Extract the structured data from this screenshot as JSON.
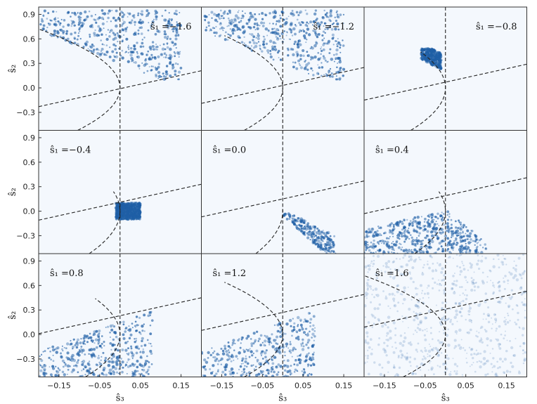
{
  "chart_data": {
    "type": "heatmap",
    "layout": {
      "rows": 3,
      "cols": 3
    },
    "xlabel": "ŝ₃",
    "ylabel": "ŝ₂",
    "xlim": [
      -0.2,
      0.2
    ],
    "ylim": [
      -0.52,
      0.99
    ],
    "xticks": [
      -0.15,
      -0.05,
      0.05,
      0.15
    ],
    "xtick_labels": [
      "−0.15",
      "−0.05",
      "0.05",
      "0.15"
    ],
    "yticks": [
      -0.3,
      0.0,
      0.3,
      0.6,
      0.9
    ],
    "ytick_labels": [
      "−0.3",
      "0.0",
      "0.3",
      "0.6",
      "0.9"
    ],
    "colormap": [
      "#ffffff",
      "#08306b"
    ],
    "vertical_reference_x": 0.0,
    "panels": [
      {
        "label_prefix": "ŝ₁ =",
        "label_value": "−1.6",
        "label_position": "top-right",
        "s1": -1.6
      },
      {
        "label_prefix": "ŝ₁ =",
        "label_value": "−1.2",
        "label_position": "top-right",
        "s1": -1.2
      },
      {
        "label_prefix": "ŝ₁ =",
        "label_value": "−0.8",
        "label_position": "top-right",
        "s1": -0.8
      },
      {
        "label_prefix": "ŝ₁ =",
        "label_value": "−0.4",
        "label_position": "top-left",
        "s1": -0.4
      },
      {
        "label_prefix": "ŝ₁ =",
        "label_value": "0.0",
        "label_position": "top-left",
        "s1": 0.0
      },
      {
        "label_prefix": "ŝ₁ =",
        "label_value": "0.4",
        "label_position": "top-left",
        "s1": 0.4
      },
      {
        "label_prefix": "ŝ₁ =",
        "label_value": "0.8",
        "label_position": "top-left",
        "s1": 0.8
      },
      {
        "label_prefix": "ŝ₁ =",
        "label_value": "1.2",
        "label_position": "top-left",
        "s1": 1.2
      },
      {
        "label_prefix": "ŝ₁ =",
        "label_value": "1.6",
        "label_position": "top-left",
        "s1": 1.6
      }
    ]
  }
}
